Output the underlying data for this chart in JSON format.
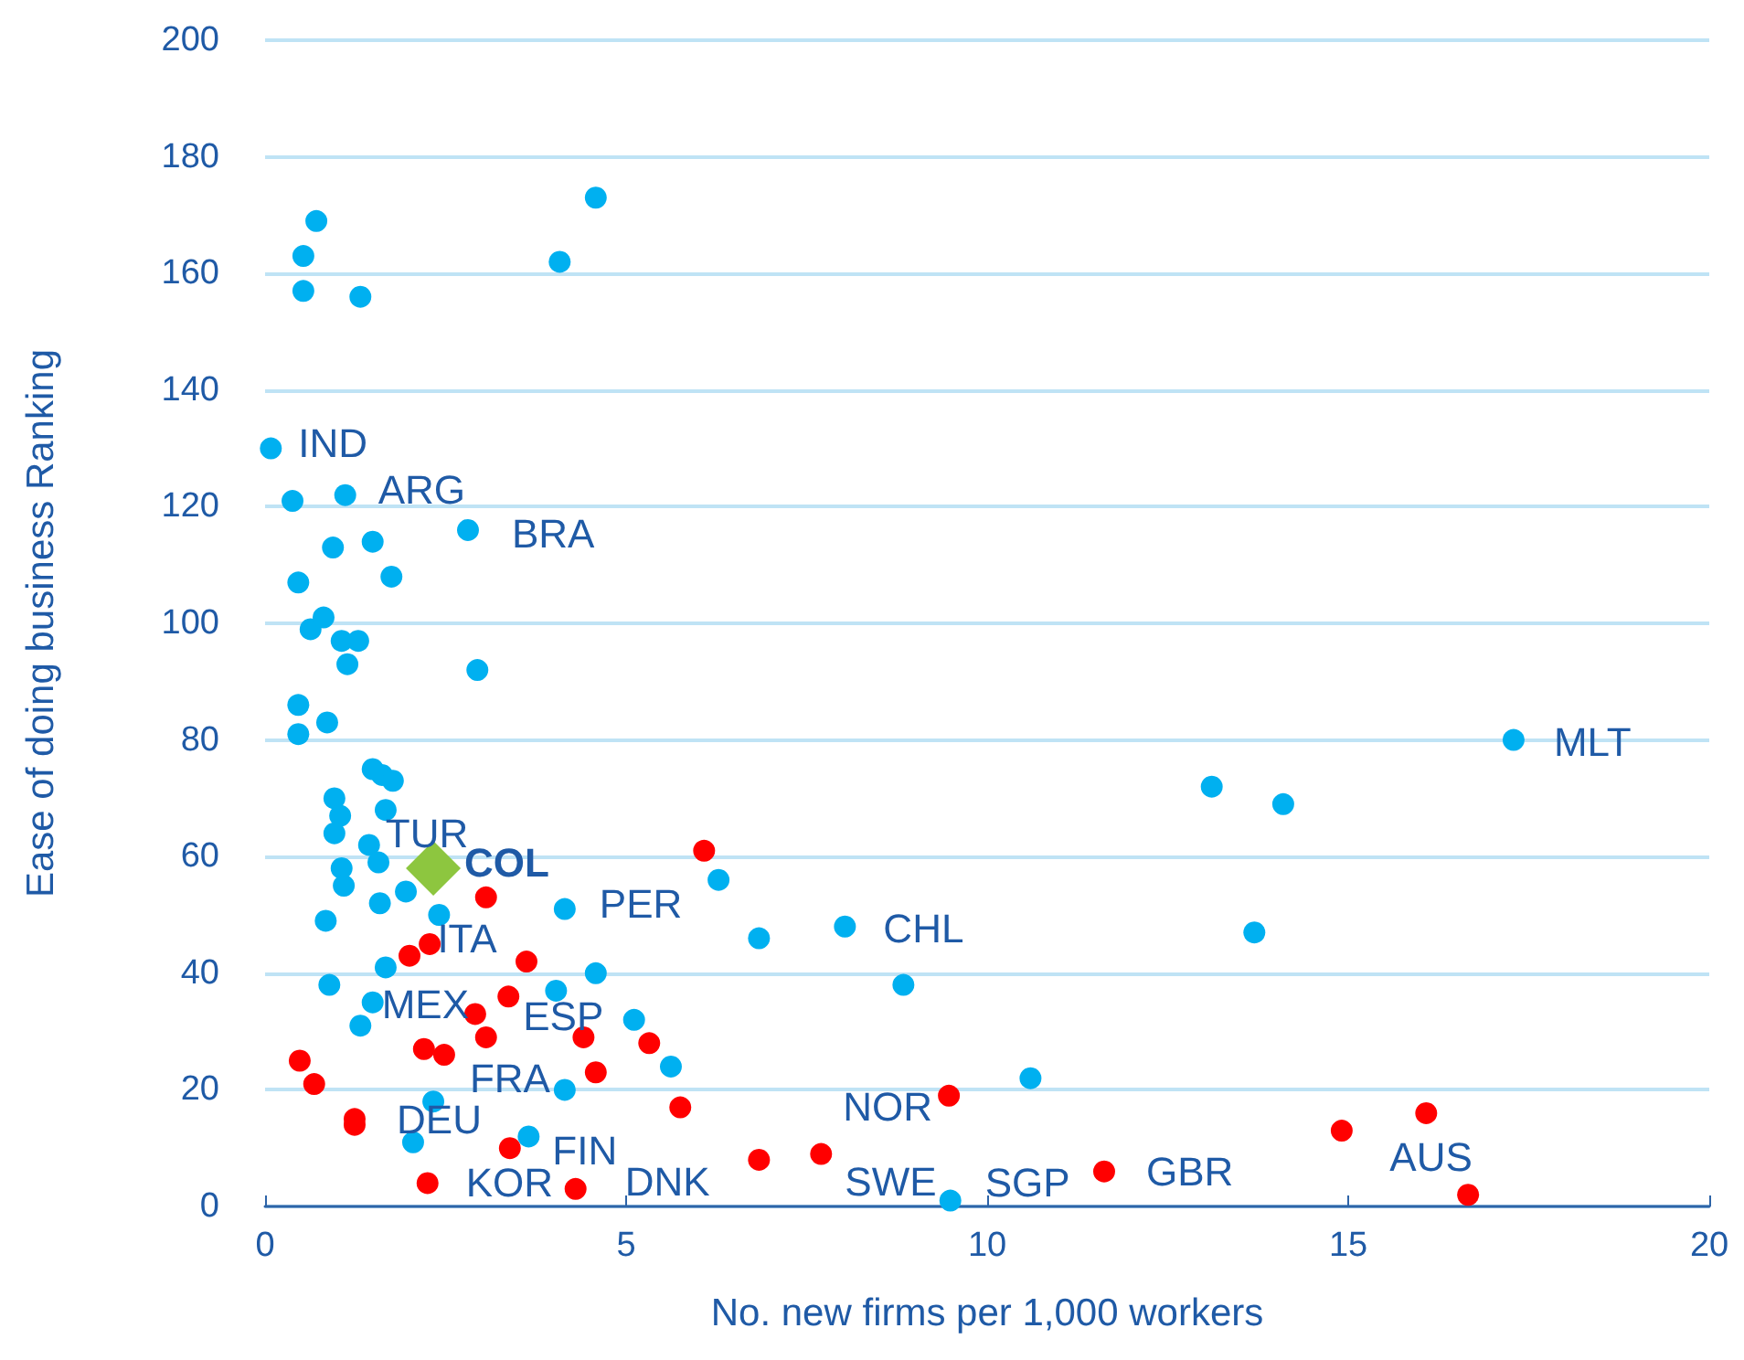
{
  "chart_data": {
    "type": "scatter",
    "xlabel": "No. new firms per 1,000 workers",
    "ylabel": "Ease of doing business Ranking",
    "xlim": [
      0,
      20
    ],
    "xticks": [
      0,
      5,
      10,
      15,
      20
    ],
    "ylim": [
      0,
      200
    ],
    "yticks": [
      0,
      20,
      40,
      60,
      80,
      100,
      120,
      140,
      160,
      180,
      200
    ],
    "grid": "y",
    "marker": "circle",
    "series": [
      {
        "color": "#00b0f0",
        "x": [
          0.08,
          0.38,
          1.11,
          0.46,
          0.94,
          1.49,
          1.75,
          0.63,
          0.81,
          1.06,
          1.29,
          1.14,
          2.94,
          2.81,
          0.46,
          0.46,
          0.86,
          0.53,
          0.71,
          0.53,
          1.32,
          4.08,
          4.58,
          0.96,
          1.04,
          1.49,
          1.62,
          1.77,
          1.67,
          0.96,
          1.44,
          1.57,
          1.06,
          1.09,
          1.59,
          1.95,
          2.41,
          0.84,
          0.89,
          1.67,
          1.49,
          1.32,
          4.15,
          4.15,
          2.33,
          2.05,
          3.65,
          4.03,
          4.58,
          6.28,
          6.84,
          8.03,
          8.84,
          5.11,
          5.62,
          10.6,
          9.49,
          17.29,
          13.11,
          14.1,
          13.7
        ],
        "values": [
          130,
          121,
          122,
          107,
          113,
          114,
          108,
          99,
          101,
          97,
          97,
          93,
          92,
          116,
          86,
          81,
          83,
          163,
          169,
          157,
          156,
          162,
          173,
          70,
          67,
          75,
          74,
          73,
          68,
          64,
          62,
          59,
          58,
          55,
          52,
          54,
          50,
          49,
          38,
          41,
          35,
          31,
          51,
          20,
          18,
          11,
          12,
          37,
          40,
          56,
          46,
          48,
          38,
          32,
          24,
          22,
          1,
          80,
          72,
          69,
          47
        ]
      },
      {
        "color": "#ff0000",
        "x": [
          3.06,
          2.28,
          2.0,
          3.62,
          3.37,
          2.91,
          3.06,
          2.2,
          2.48,
          4.41,
          4.58,
          0.48,
          0.68,
          1.24,
          1.24,
          3.39,
          2.25,
          4.3,
          6.08,
          5.32,
          5.75,
          6.84,
          7.7,
          9.47,
          11.62,
          14.91,
          16.08,
          16.66
        ],
        "values": [
          53,
          45,
          43,
          42,
          36,
          33,
          29,
          27,
          26,
          29,
          23,
          25,
          21,
          15,
          14,
          10,
          4,
          3,
          61,
          28,
          17,
          8,
          9,
          19,
          6,
          13,
          16,
          2
        ]
      },
      {
        "color": "#8dc63f",
        "marker": "diamond",
        "x": [
          2.33
        ],
        "values": [
          58
        ]
      }
    ],
    "annotations": [
      {
        "text": "IND",
        "x": 0.08,
        "y": 130
      },
      {
        "text": "ARG",
        "x": 1.11,
        "y": 122
      },
      {
        "text": "BRA",
        "x": 2.81,
        "y": 116
      },
      {
        "text": "MLT",
        "x": 17.29,
        "y": 80
      },
      {
        "text": "TUR",
        "x": 1.44,
        "y": 62
      },
      {
        "text": "COL",
        "x": 2.33,
        "y": 58
      },
      {
        "text": "PER",
        "x": 4.15,
        "y": 51
      },
      {
        "text": "ITA",
        "x": 2.41,
        "y": 50
      },
      {
        "text": "CHL",
        "x": 8.03,
        "y": 48
      },
      {
        "text": "MEX",
        "x": 1.49,
        "y": 35
      },
      {
        "text": "ESP",
        "x": 3.37,
        "y": 36
      },
      {
        "text": "FRA",
        "x": 2.48,
        "y": 26
      },
      {
        "text": "NOR",
        "x": 9.47,
        "y": 19
      },
      {
        "text": "DEU",
        "x": 2.33,
        "y": 18
      },
      {
        "text": "FIN",
        "x": 3.65,
        "y": 12
      },
      {
        "text": "KOR",
        "x": 2.25,
        "y": 4
      },
      {
        "text": "DNK",
        "x": 4.3,
        "y": 3
      },
      {
        "text": "SWE",
        "x": 7.7,
        "y": 9
      },
      {
        "text": "SGP",
        "x": 9.49,
        "y": 1
      },
      {
        "text": "GBR",
        "x": 11.62,
        "y": 6
      },
      {
        "text": "AUS",
        "x": 16.08,
        "y": 16
      }
    ]
  }
}
